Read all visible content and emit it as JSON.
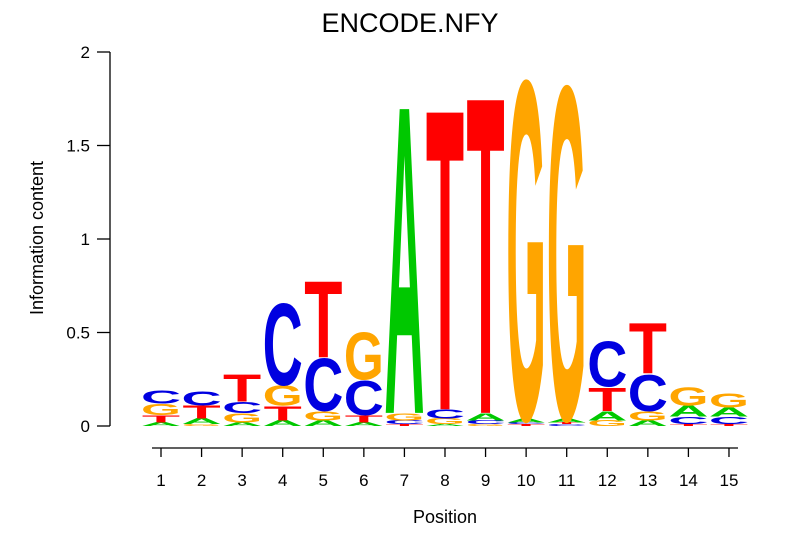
{
  "chart_data": {
    "type": "bar",
    "subtype": "sequence-logo",
    "title": "ENCODE.NFY",
    "xlabel": "Position",
    "ylabel": "Information content",
    "ylim": [
      0,
      2
    ],
    "grid": false,
    "legend": "none",
    "y_ticks": [
      {
        "value": 0,
        "label": "0"
      },
      {
        "value": 0.5,
        "label": "0.5"
      },
      {
        "value": 1,
        "label": "1"
      },
      {
        "value": 1.5,
        "label": "1.5"
      },
      {
        "value": 2,
        "label": "2"
      }
    ],
    "letter_colors": {
      "A": "#00C800",
      "C": "#0000E0",
      "G": "#FFA500",
      "T": "#FF0000"
    },
    "positions": [
      {
        "position": 1,
        "stack": [
          {
            "letter": "A",
            "bits": 0.02
          },
          {
            "letter": "T",
            "bits": 0.04
          },
          {
            "letter": "G",
            "bits": 0.06
          },
          {
            "letter": "C",
            "bits": 0.07
          }
        ]
      },
      {
        "position": 2,
        "stack": [
          {
            "letter": "G",
            "bits": 0.01
          },
          {
            "letter": "A",
            "bits": 0.03
          },
          {
            "letter": "T",
            "bits": 0.07
          },
          {
            "letter": "C",
            "bits": 0.08
          }
        ]
      },
      {
        "position": 3,
        "stack": [
          {
            "letter": "A",
            "bits": 0.02
          },
          {
            "letter": "G",
            "bits": 0.05
          },
          {
            "letter": "C",
            "bits": 0.06
          },
          {
            "letter": "T",
            "bits": 0.15
          }
        ]
      },
      {
        "position": 4,
        "stack": [
          {
            "letter": "A",
            "bits": 0.03
          },
          {
            "letter": "T",
            "bits": 0.08
          },
          {
            "letter": "G",
            "bits": 0.11
          },
          {
            "letter": "C",
            "bits": 0.45
          }
        ]
      },
      {
        "position": 5,
        "stack": [
          {
            "letter": "A",
            "bits": 0.03
          },
          {
            "letter": "G",
            "bits": 0.05
          },
          {
            "letter": "C",
            "bits": 0.29
          },
          {
            "letter": "T",
            "bits": 0.42
          }
        ]
      },
      {
        "position": 6,
        "stack": [
          {
            "letter": "A",
            "bits": 0.02
          },
          {
            "letter": "T",
            "bits": 0.04
          },
          {
            "letter": "C",
            "bits": 0.19
          },
          {
            "letter": "G",
            "bits": 0.26
          }
        ]
      },
      {
        "position": 7,
        "stack": [
          {
            "letter": "T",
            "bits": 0.01
          },
          {
            "letter": "C",
            "bits": 0.02
          },
          {
            "letter": "G",
            "bits": 0.04
          },
          {
            "letter": "A",
            "bits": 1.7
          }
        ]
      },
      {
        "position": 8,
        "stack": [
          {
            "letter": "A",
            "bits": 0.01
          },
          {
            "letter": "G",
            "bits": 0.03
          },
          {
            "letter": "C",
            "bits": 0.05
          },
          {
            "letter": "T",
            "bits": 1.66
          }
        ]
      },
      {
        "position": 9,
        "stack": [
          {
            "letter": "G",
            "bits": 0.01
          },
          {
            "letter": "C",
            "bits": 0.02
          },
          {
            "letter": "A",
            "bits": 0.04
          },
          {
            "letter": "T",
            "bits": 1.75
          }
        ]
      },
      {
        "position": 10,
        "stack": [
          {
            "letter": "T",
            "bits": 0.01
          },
          {
            "letter": "C",
            "bits": 0.01
          },
          {
            "letter": "A",
            "bits": 0.02
          },
          {
            "letter": "G",
            "bits": 1.87
          }
        ]
      },
      {
        "position": 11,
        "stack": [
          {
            "letter": "C",
            "bits": 0.01
          },
          {
            "letter": "T",
            "bits": 0.01
          },
          {
            "letter": "A",
            "bits": 0.02
          },
          {
            "letter": "G",
            "bits": 1.84
          }
        ]
      },
      {
        "position": 12,
        "stack": [
          {
            "letter": "G",
            "bits": 0.03
          },
          {
            "letter": "A",
            "bits": 0.05
          },
          {
            "letter": "T",
            "bits": 0.13
          },
          {
            "letter": "C",
            "bits": 0.25
          }
        ]
      },
      {
        "position": 13,
        "stack": [
          {
            "letter": "A",
            "bits": 0.03
          },
          {
            "letter": "G",
            "bits": 0.05
          },
          {
            "letter": "C",
            "bits": 0.2
          },
          {
            "letter": "T",
            "bits": 0.28
          }
        ]
      },
      {
        "position": 14,
        "stack": [
          {
            "letter": "T",
            "bits": 0.01
          },
          {
            "letter": "C",
            "bits": 0.04
          },
          {
            "letter": "A",
            "bits": 0.06
          },
          {
            "letter": "G",
            "bits": 0.1
          }
        ]
      },
      {
        "position": 15,
        "stack": [
          {
            "letter": "T",
            "bits": 0.01
          },
          {
            "letter": "C",
            "bits": 0.04
          },
          {
            "letter": "A",
            "bits": 0.05
          },
          {
            "letter": "G",
            "bits": 0.08
          }
        ]
      }
    ]
  }
}
